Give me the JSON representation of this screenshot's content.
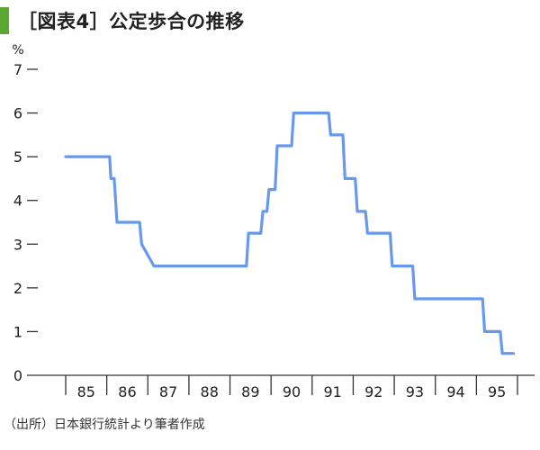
{
  "header": {
    "title": "［図表4］公定歩合の推移"
  },
  "footer": {
    "source": "（出所）日本銀行統計より筆者作成"
  },
  "colors": {
    "accent": "#5aa832",
    "line": "#6699ee"
  },
  "chart_data": {
    "type": "line",
    "title": "［図表4］公定歩合の推移",
    "ylabel": "%",
    "xlabel": "",
    "ylim": [
      0,
      7
    ],
    "xlim": [
      1985,
      1996
    ],
    "yticks": [
      "0",
      "1",
      "2",
      "3",
      "4",
      "5",
      "6",
      "7"
    ],
    "xticks": [
      "85",
      "86",
      "87",
      "88",
      "89",
      "90",
      "91",
      "92",
      "93",
      "94",
      "95"
    ],
    "grid": false,
    "legend": "none",
    "series": [
      {
        "x": [
          1985.0,
          1986.07,
          1986.1,
          1986.18,
          1986.25,
          1986.8,
          1986.85,
          1987.15,
          1988.0,
          1989.0,
          1989.4,
          1989.45,
          1989.75,
          1989.8,
          1989.9,
          1989.95,
          1990.1,
          1990.15,
          1990.5,
          1990.55,
          1991.0,
          1991.4,
          1991.45,
          1991.75,
          1991.8,
          1992.05,
          1992.1,
          1992.3,
          1992.35,
          1992.9,
          1992.95,
          1993.45,
          1993.5,
          1994.0,
          1995.0,
          1995.15,
          1995.2,
          1995.58,
          1995.63,
          1995.9
        ],
        "y": [
          5.0,
          5.0,
          4.5,
          4.5,
          3.5,
          3.5,
          3.0,
          2.5,
          2.5,
          2.5,
          2.5,
          3.25,
          3.25,
          3.75,
          3.75,
          4.25,
          4.25,
          5.25,
          5.25,
          6.0,
          6.0,
          6.0,
          5.5,
          5.5,
          4.5,
          4.5,
          3.75,
          3.75,
          3.25,
          3.25,
          2.5,
          2.5,
          1.75,
          1.75,
          1.75,
          1.75,
          1.0,
          1.0,
          0.5,
          0.5
        ]
      }
    ]
  }
}
